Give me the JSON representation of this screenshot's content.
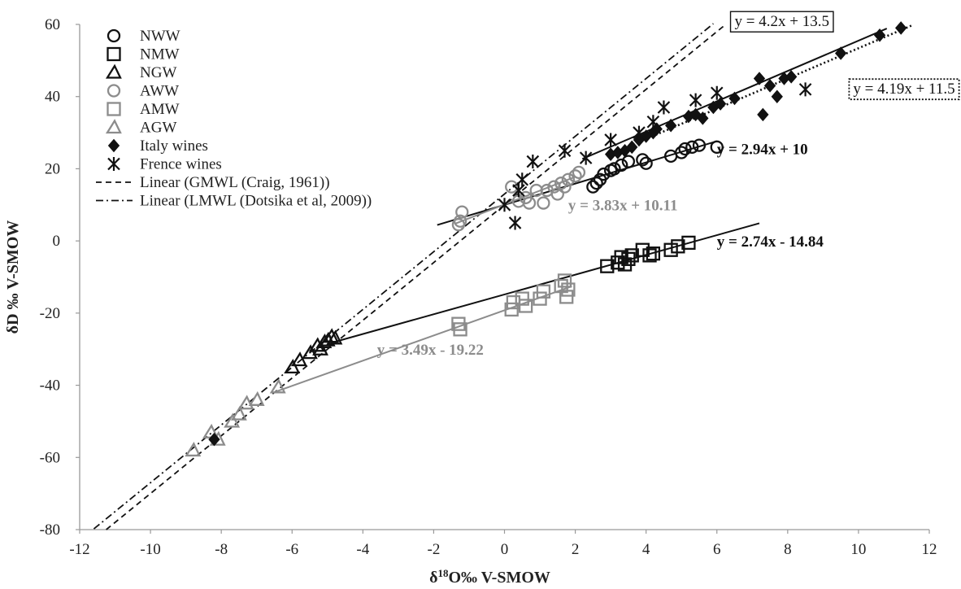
{
  "chart_data": {
    "type": "scatter",
    "title": "",
    "xlabel": "δ18O‰ V-SMOW",
    "xlabel_parts": {
      "pre": "δ",
      "sup": "18",
      "post": "O‰ V-SMOW"
    },
    "ylabel": "δD ‰ V-SMOW",
    "xlim": [
      -12,
      12
    ],
    "ylim": [
      -80,
      60
    ],
    "xticks": [
      -12,
      -10,
      -8,
      -6,
      -4,
      -2,
      0,
      2,
      4,
      6,
      8,
      10,
      12
    ],
    "yticks": [
      -80,
      -60,
      -40,
      -20,
      0,
      20,
      40,
      60
    ],
    "grid": false,
    "legend_position": "top-left",
    "colors": {
      "black": "#111111",
      "gray": "#8c8c8c"
    },
    "series": [
      {
        "name": "NWW",
        "marker": "circle",
        "color": "#111111",
        "points": [
          [
            2.5,
            15
          ],
          [
            2.6,
            16
          ],
          [
            2.7,
            17
          ],
          [
            2.8,
            18.5
          ],
          [
            3.0,
            19.5
          ],
          [
            3.1,
            20
          ],
          [
            3.3,
            21
          ],
          [
            3.5,
            22
          ],
          [
            3.9,
            22.5
          ],
          [
            4.0,
            21.5
          ],
          [
            4.7,
            23.5
          ],
          [
            5.0,
            24.5
          ],
          [
            5.1,
            25.5
          ],
          [
            5.3,
            26
          ],
          [
            5.5,
            26.5
          ],
          [
            6.0,
            26
          ]
        ]
      },
      {
        "name": "NMW",
        "marker": "square",
        "color": "#111111",
        "points": [
          [
            2.9,
            -7
          ],
          [
            3.2,
            -6
          ],
          [
            3.3,
            -4.5
          ],
          [
            3.4,
            -6.5
          ],
          [
            3.5,
            -5
          ],
          [
            3.6,
            -4
          ],
          [
            3.9,
            -2.5
          ],
          [
            4.1,
            -4
          ],
          [
            4.2,
            -3.5
          ],
          [
            4.7,
            -2.5
          ],
          [
            4.9,
            -1.5
          ],
          [
            5.2,
            -0.5
          ]
        ]
      },
      {
        "name": "NGW",
        "marker": "triangle",
        "color": "#111111",
        "points": [
          [
            -6.0,
            -35
          ],
          [
            -5.8,
            -33
          ],
          [
            -5.5,
            -31
          ],
          [
            -5.3,
            -29
          ],
          [
            -5.2,
            -30
          ],
          [
            -5.1,
            -28
          ],
          [
            -5.0,
            -27.5
          ],
          [
            -4.9,
            -26.5
          ],
          [
            -4.8,
            -27
          ]
        ]
      },
      {
        "name": "AWW",
        "marker": "circle",
        "color": "#8c8c8c",
        "points": [
          [
            -1.3,
            4.5
          ],
          [
            -1.25,
            5.5
          ],
          [
            -1.2,
            8
          ],
          [
            0.2,
            15
          ],
          [
            0.4,
            11
          ],
          [
            0.6,
            12
          ],
          [
            0.7,
            10.5
          ],
          [
            0.9,
            14
          ],
          [
            1.1,
            10.5
          ],
          [
            1.2,
            14
          ],
          [
            1.4,
            15
          ],
          [
            1.5,
            13
          ],
          [
            1.6,
            16
          ],
          [
            1.7,
            15
          ],
          [
            1.8,
            17
          ],
          [
            2.0,
            18
          ],
          [
            2.1,
            19
          ]
        ]
      },
      {
        "name": "AMW",
        "marker": "square",
        "color": "#8c8c8c",
        "points": [
          [
            -1.3,
            -23
          ],
          [
            -1.25,
            -24.5
          ],
          [
            0.2,
            -19
          ],
          [
            0.25,
            -17
          ],
          [
            0.5,
            -16
          ],
          [
            0.6,
            -18
          ],
          [
            1.0,
            -16
          ],
          [
            1.1,
            -14
          ],
          [
            1.6,
            -12.5
          ],
          [
            1.7,
            -11
          ],
          [
            1.75,
            -15.5
          ],
          [
            1.8,
            -13.5
          ]
        ]
      },
      {
        "name": "AGW",
        "marker": "triangle",
        "color": "#8c8c8c",
        "points": [
          [
            -8.8,
            -58
          ],
          [
            -8.3,
            -53
          ],
          [
            -8.1,
            -55
          ],
          [
            -7.7,
            -50
          ],
          [
            -7.5,
            -48
          ],
          [
            -7.3,
            -45
          ],
          [
            -7.0,
            -44
          ],
          [
            -6.4,
            -40.5
          ]
        ]
      },
      {
        "name": "Italy wines",
        "marker": "diamond",
        "color": "#111111",
        "points": [
          [
            -8.2,
            -55
          ],
          [
            3.0,
            24
          ],
          [
            3.2,
            24.5
          ],
          [
            3.4,
            25
          ],
          [
            3.6,
            26
          ],
          [
            3.8,
            28
          ],
          [
            4.0,
            29
          ],
          [
            4.2,
            30
          ],
          [
            4.3,
            31
          ],
          [
            4.7,
            32
          ],
          [
            5.2,
            34.5
          ],
          [
            5.4,
            35
          ],
          [
            5.6,
            34
          ],
          [
            5.9,
            37
          ],
          [
            6.1,
            38
          ],
          [
            6.5,
            39.5
          ],
          [
            7.2,
            45
          ],
          [
            7.3,
            35
          ],
          [
            7.5,
            43
          ],
          [
            7.7,
            40
          ],
          [
            7.9,
            45
          ],
          [
            8.1,
            45.5
          ],
          [
            9.5,
            52
          ],
          [
            10.6,
            57
          ],
          [
            11.2,
            59
          ]
        ]
      },
      {
        "name": "Frence wines",
        "marker": "asterisk",
        "color": "#111111",
        "points": [
          [
            0.0,
            10
          ],
          [
            0.3,
            5
          ],
          [
            0.4,
            14
          ],
          [
            0.5,
            17
          ],
          [
            0.8,
            22
          ],
          [
            1.7,
            25
          ],
          [
            2.3,
            23
          ],
          [
            3.0,
            28
          ],
          [
            3.8,
            30
          ],
          [
            4.2,
            33
          ],
          [
            4.5,
            37
          ],
          [
            5.4,
            39
          ],
          [
            6.0,
            41
          ],
          [
            8.5,
            42
          ]
        ]
      }
    ],
    "lines": [
      {
        "name": "Linear (GMWL (Craig, 1961))",
        "style": "dashed",
        "slope": 8,
        "intercept": 10,
        "x_range": [
          -11.25,
          6.25
        ]
      },
      {
        "name": "Linear (LMWL (Dotsika et al, 2009))",
        "style": "dash-dot",
        "slope": 8,
        "intercept": 13,
        "x_range": [
          -11.6,
          5.9
        ]
      }
    ],
    "trendlines": [
      {
        "equation": "y = 2.94x + 10",
        "color": "#111111",
        "style": "solid",
        "slope": 2.94,
        "intercept": 10,
        "x_range": [
          -1.9,
          6.0
        ],
        "label_x": 6.0,
        "label_y": 24,
        "bold": true,
        "box": "none"
      },
      {
        "equation": "y = 2.74x - 14.84",
        "color": "#111111",
        "style": "solid",
        "slope": 2.74,
        "intercept": -14.84,
        "x_range": [
          -4.9,
          7.2
        ],
        "label_x": 6.0,
        "label_y": -1.5,
        "bold": true,
        "box": "none"
      },
      {
        "equation": "y = 3.83x + 10.11",
        "color": "#8c8c8c",
        "style": "solid",
        "slope": 3.83,
        "intercept": 10.11,
        "x_range": [
          -1.4,
          2.0
        ],
        "label_x": 1.8,
        "label_y": 8.5,
        "bold": true,
        "box": "none"
      },
      {
        "equation": "y = 3.49x - 19.22",
        "color": "#8c8c8c",
        "style": "solid",
        "slope": 3.49,
        "intercept": -19.22,
        "x_range": [
          -6.5,
          1.9
        ],
        "label_x": -3.6,
        "label_y": -31.5,
        "bold": true,
        "box": "none"
      },
      {
        "equation": "y = 4.2x + 13.5",
        "color": "#111111",
        "style": "solid",
        "slope": 4.2,
        "intercept": 13.5,
        "x_range": [
          2.2,
          10.8
        ],
        "label_x": 6.5,
        "label_y": 59.5,
        "bold": false,
        "box": "solid"
      },
      {
        "equation": "y = 4.19x + 11.5",
        "color": "#111111",
        "style": "dotted",
        "slope": 4.19,
        "intercept": 11.5,
        "x_range": [
          3.0,
          11.5
        ],
        "label_x": 9.85,
        "label_y": 40.8,
        "bold": false,
        "box": "dotted"
      }
    ]
  }
}
